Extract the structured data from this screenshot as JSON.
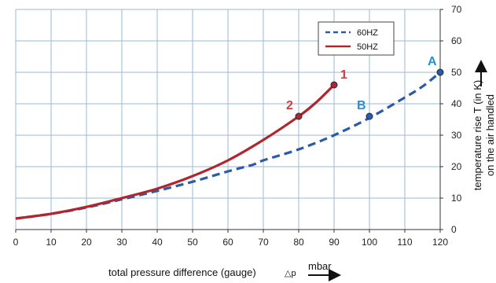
{
  "chart_data": {
    "type": "line",
    "xlabel": "total pressure difference (gauge)",
    "xlabel_symbol": "△p",
    "xunit": "mbar",
    "ylabel_line1": "temperature rise T (in K)",
    "ylabel_line2": "on the air handled",
    "xlim": [
      0,
      120
    ],
    "ylim": [
      0,
      70
    ],
    "xticks": [
      "0",
      "10",
      "20",
      "30",
      "40",
      "50",
      "60",
      "70",
      "80",
      "90",
      "100",
      "110",
      "120"
    ],
    "yticks": [
      "0",
      "10",
      "20",
      "30",
      "40",
      "50",
      "60",
      "70"
    ],
    "grid": true,
    "legend_position": "top-right",
    "series": [
      {
        "name": "60HZ",
        "style": "dashed",
        "color": "#2a5aa8",
        "x": [
          0,
          10,
          20,
          30,
          40,
          50,
          60,
          67,
          70,
          80,
          90,
          100,
          110,
          115,
          120
        ],
        "y": [
          3.5,
          5,
          7,
          9.6,
          12.3,
          15.2,
          18.5,
          20.6,
          22,
          25.5,
          30,
          35.5,
          42,
          45.5,
          50
        ]
      },
      {
        "name": "50HZ",
        "style": "solid",
        "color": "#b0262f",
        "x": [
          0,
          10,
          20,
          30,
          40,
          50,
          60,
          70,
          80,
          85,
          90
        ],
        "y": [
          3.5,
          5,
          7.2,
          10,
          13,
          17,
          22,
          28.5,
          36,
          40.5,
          46
        ]
      }
    ],
    "points": [
      {
        "label": "A",
        "x": 120,
        "y": 50,
        "color": "#2a8fcf",
        "marker": "#2a5aa8",
        "labelPos": "upper-left"
      },
      {
        "label": "B",
        "x": 100,
        "y": 36,
        "color": "#2a8fcf",
        "marker": "#2a5aa8",
        "labelPos": "upper-left"
      },
      {
        "label": "1",
        "x": 90,
        "y": 46,
        "color": "#d93a3a",
        "marker": "#b0262f",
        "labelPos": "upper-right"
      },
      {
        "label": "2",
        "x": 80,
        "y": 36,
        "color": "#d93a3a",
        "marker": "#b0262f",
        "labelPos": "upper-left"
      }
    ]
  }
}
